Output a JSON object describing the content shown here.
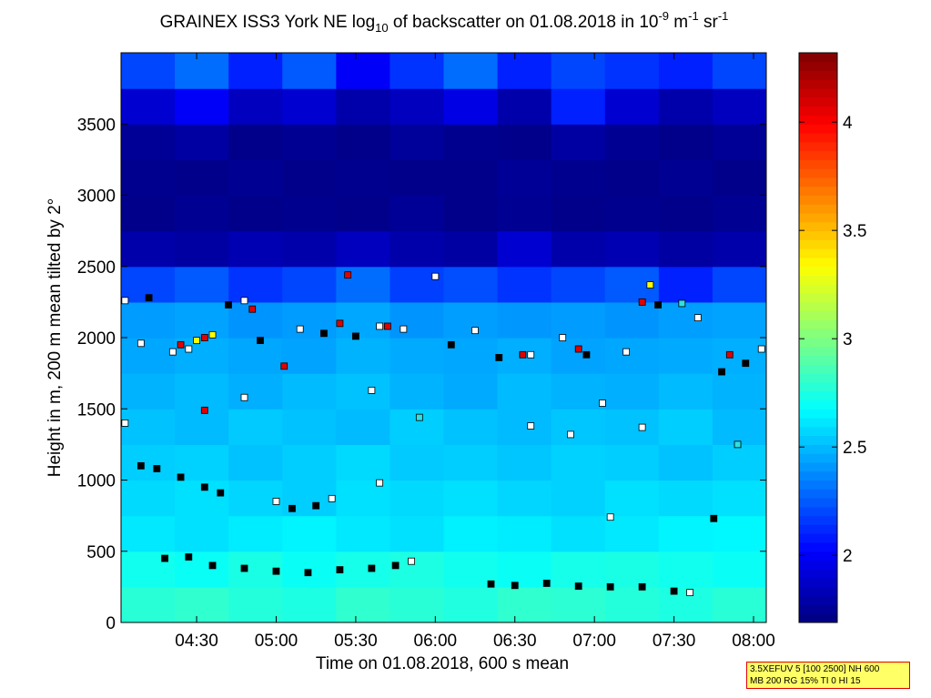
{
  "chart_data": {
    "type": "heatmap",
    "title": [
      "GRAINEX ISS3 York NE log",
      "10",
      " of backscatter on 01.08.2018 in 10",
      "-9",
      " m",
      "-1",
      " sr",
      "-1"
    ],
    "x_label": "Time on 01.08.2018, 600 s mean",
    "y_label": "Height in m, 200 m mean tilted by 2°",
    "xlim": [
      4.025,
      8.08
    ],
    "ylim": [
      0,
      4000
    ],
    "xticks": [
      {
        "value": 4.5,
        "label": "04:30"
      },
      {
        "value": 5,
        "label": "05:00"
      },
      {
        "value": 5.5,
        "label": "05:30"
      },
      {
        "value": 6,
        "label": "06:00"
      },
      {
        "value": 6.5,
        "label": "06:30"
      },
      {
        "value": 7,
        "label": "07:00"
      },
      {
        "value": 7.5,
        "label": "07:30"
      },
      {
        "value": 8,
        "label": "08:00"
      }
    ],
    "yticks": [
      0,
      500,
      1000,
      1500,
      2000,
      2500,
      3000,
      3500
    ],
    "clim": [
      1.69,
      4.32
    ],
    "cticks": [
      2,
      2.5,
      3,
      3.5,
      4
    ],
    "colormap": "jet",
    "heatmap": {
      "z": [
        [
          2.78,
          2.8,
          2.77,
          2.75,
          2.8,
          2.78,
          2.76,
          2.8,
          2.79,
          2.77,
          2.75,
          2.78
        ],
        [
          2.72,
          2.7,
          2.74,
          2.7,
          2.73,
          2.75,
          2.72,
          2.7,
          2.73,
          2.74,
          2.72,
          2.7
        ],
        [
          2.62,
          2.6,
          2.63,
          2.65,
          2.62,
          2.6,
          2.64,
          2.63,
          2.6,
          2.62,
          2.65,
          2.66
        ],
        [
          2.58,
          2.6,
          2.57,
          2.55,
          2.6,
          2.58,
          2.6,
          2.57,
          2.56,
          2.6,
          2.58,
          2.6
        ],
        [
          2.55,
          2.56,
          2.52,
          2.55,
          2.58,
          2.54,
          2.55,
          2.53,
          2.56,
          2.55,
          2.52,
          2.55
        ],
        [
          2.52,
          2.5,
          2.54,
          2.52,
          2.5,
          2.55,
          2.52,
          2.5,
          2.53,
          2.52,
          2.55,
          2.5
        ],
        [
          2.48,
          2.5,
          2.47,
          2.5,
          2.52,
          2.48,
          2.46,
          2.5,
          2.48,
          2.47,
          2.5,
          2.48
        ],
        [
          2.45,
          2.47,
          2.45,
          2.44,
          2.48,
          2.46,
          2.45,
          2.47,
          2.44,
          2.45,
          2.46,
          2.47
        ],
        [
          2.42,
          2.44,
          2.4,
          2.42,
          2.45,
          2.4,
          2.43,
          2.41,
          2.42,
          2.4,
          2.43,
          2.44
        ],
        [
          2.2,
          2.25,
          2.15,
          2.2,
          2.3,
          2.18,
          2.22,
          2.15,
          2.2,
          2.25,
          2.1,
          2.2
        ],
        [
          1.8,
          1.78,
          1.82,
          1.8,
          1.85,
          1.8,
          1.78,
          1.9,
          1.8,
          1.82,
          1.78,
          1.8
        ],
        [
          1.72,
          1.74,
          1.72,
          1.73,
          1.72,
          1.75,
          1.72,
          1.74,
          1.72,
          1.73,
          1.72,
          1.74
        ],
        [
          1.73,
          1.72,
          1.74,
          1.72,
          1.73,
          1.72,
          1.72,
          1.75,
          1.73,
          1.72,
          1.74,
          1.72
        ],
        [
          1.75,
          1.78,
          1.72,
          1.74,
          1.72,
          1.76,
          1.73,
          1.72,
          1.78,
          1.74,
          1.72,
          1.75
        ],
        [
          1.9,
          2.0,
          1.85,
          1.9,
          1.8,
          1.85,
          1.95,
          1.8,
          2.1,
          1.9,
          1.8,
          1.85
        ],
        [
          2.2,
          2.3,
          2.1,
          2.25,
          2.0,
          2.15,
          2.3,
          2.1,
          2.2,
          2.15,
          2.1,
          2.2
        ]
      ]
    },
    "points": [
      {
        "color": "#000000",
        "x": [
          4.3,
          4.45,
          4.6,
          4.8,
          5.0,
          5.2,
          5.4,
          5.6,
          5.75,
          6.35,
          6.5,
          6.7,
          6.9,
          7.1,
          7.3,
          7.5,
          4.15,
          4.25,
          4.4,
          4.55,
          4.65,
          5.1,
          5.25,
          4.2,
          4.7,
          4.9,
          5.3,
          5.5,
          6.1,
          6.4,
          6.95,
          7.4,
          7.8,
          7.95,
          7.75
        ],
        "y": [
          450,
          460,
          400,
          380,
          360,
          350,
          370,
          380,
          400,
          270,
          260,
          275,
          255,
          250,
          250,
          220,
          1100,
          1080,
          1020,
          950,
          910,
          800,
          820,
          2280,
          2230,
          1980,
          2030,
          2010,
          1950,
          1860,
          1880,
          2230,
          1760,
          1820,
          730
        ]
      },
      {
        "color": "#ffffff",
        "x": [
          5.85,
          7.6,
          5.0,
          5.35,
          4.05,
          4.35,
          4.45,
          4.8,
          5.15,
          5.65,
          5.8,
          6.0,
          6.25,
          6.6,
          6.8,
          7.2,
          7.65,
          8.05,
          4.05,
          4.8,
          5.6,
          5.65,
          6.6,
          6.85,
          7.05,
          7.3,
          7.1,
          4.15
        ],
        "y": [
          430,
          210,
          850,
          870,
          2260,
          1900,
          1920,
          2260,
          2060,
          2080,
          2060,
          2430,
          2050,
          1880,
          2000,
          1900,
          2140,
          1920,
          1400,
          1580,
          1630,
          980,
          1380,
          1320,
          1540,
          1370,
          740,
          1960
        ]
      },
      {
        "color": "#e00000",
        "x": [
          4.4,
          4.55,
          4.85,
          5.05,
          5.4,
          5.7,
          6.55,
          6.9,
          7.3,
          7.85,
          4.55,
          5.45
        ],
        "y": [
          1950,
          2000,
          2200,
          1800,
          2100,
          2080,
          1880,
          1920,
          2250,
          1880,
          1490,
          2440
        ]
      },
      {
        "color": "#ffff00",
        "x": [
          4.6,
          4.5,
          7.35
        ],
        "y": [
          2020,
          1980,
          2370
        ]
      },
      {
        "color": "#30e0e0",
        "x": [
          7.55,
          5.9,
          7.9
        ],
        "y": [
          2240,
          1440,
          1250
        ]
      }
    ],
    "annotation": [
      "3.5XEFUV 5 [100 2500] NH 600",
      "MB 200 RG 15% TI 0 HI 15"
    ]
  }
}
